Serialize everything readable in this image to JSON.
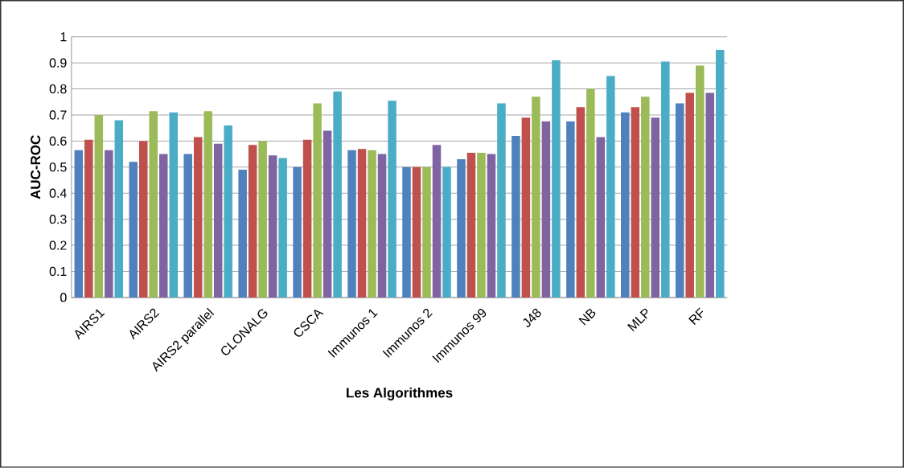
{
  "chart_data": {
    "type": "bar",
    "xlabel": "Les Algorithmes",
    "ylabel": "AUC-ROC",
    "categories": [
      "AIRS1",
      "AIRS2",
      "AIRS2 parallel",
      "CLONALG",
      "CSCA",
      "Immunos 1",
      "Immunos 2",
      "Immunos 99",
      "J48",
      "NB",
      "MLP",
      "RF"
    ],
    "series": [
      {
        "color": "#4f81bd",
        "values": [
          0.565,
          0.52,
          0.55,
          0.49,
          0.5,
          0.565,
          0.5,
          0.53,
          0.62,
          0.675,
          0.71,
          0.745
        ]
      },
      {
        "color": "#c0504d",
        "values": [
          0.605,
          0.6,
          0.615,
          0.585,
          0.605,
          0.57,
          0.5,
          0.555,
          0.69,
          0.73,
          0.73,
          0.785
        ]
      },
      {
        "color": "#9bbb59",
        "values": [
          0.7,
          0.715,
          0.715,
          0.6,
          0.745,
          0.565,
          0.5,
          0.555,
          0.77,
          0.8,
          0.77,
          0.89
        ]
      },
      {
        "color": "#8064a2",
        "values": [
          0.565,
          0.55,
          0.59,
          0.545,
          0.64,
          0.55,
          0.585,
          0.55,
          0.675,
          0.615,
          0.69,
          0.785
        ]
      },
      {
        "color": "#4bacc6",
        "values": [
          0.68,
          0.71,
          0.66,
          0.535,
          0.79,
          0.755,
          0.5,
          0.745,
          0.91,
          0.85,
          0.905,
          0.95
        ]
      }
    ],
    "ylim": [
      0,
      1
    ],
    "yticks": [
      0,
      0.1,
      0.2,
      0.3,
      0.4,
      0.5,
      0.6,
      0.7,
      0.8,
      0.9,
      1
    ],
    "grid": "y"
  }
}
